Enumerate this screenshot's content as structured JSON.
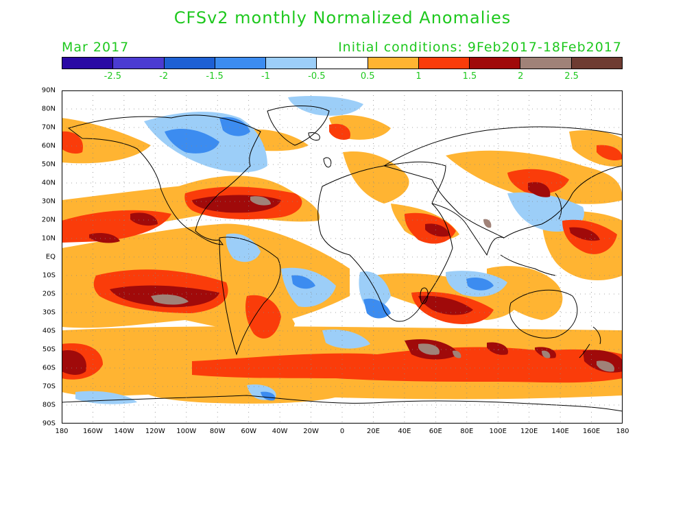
{
  "header": {
    "title": "CFSv2 monthly Normalized Anomalies",
    "month": "Mar 2017",
    "initial_conditions": "Initial conditions: 9Feb2017-18Feb2017"
  },
  "legend": {
    "colors": [
      "#2a0aa4",
      "#4b3bd2",
      "#1e60d4",
      "#3c8cf0",
      "#9ccef8",
      "#ffffff",
      "#ffb432",
      "#fa3c0a",
      "#a00a0a",
      "#a08278",
      "#6e3c32"
    ],
    "ticks": [
      "-2.5",
      "-2",
      "-1.5",
      "-1",
      "-0.5",
      "0.5",
      "1",
      "1.5",
      "2",
      "2.5"
    ]
  },
  "axes": {
    "lat_labels": [
      "90N",
      "80N",
      "70N",
      "60N",
      "50N",
      "40N",
      "30N",
      "20N",
      "10N",
      "EQ",
      "10S",
      "20S",
      "30S",
      "40S",
      "50S",
      "60S",
      "70S",
      "80S",
      "90S"
    ],
    "lon_labels": [
      "180",
      "160W",
      "140W",
      "120W",
      "100W",
      "80W",
      "60W",
      "40W",
      "20W",
      "0",
      "20E",
      "40E",
      "60E",
      "80E",
      "100E",
      "120E",
      "140E",
      "160E",
      "180"
    ]
  }
}
